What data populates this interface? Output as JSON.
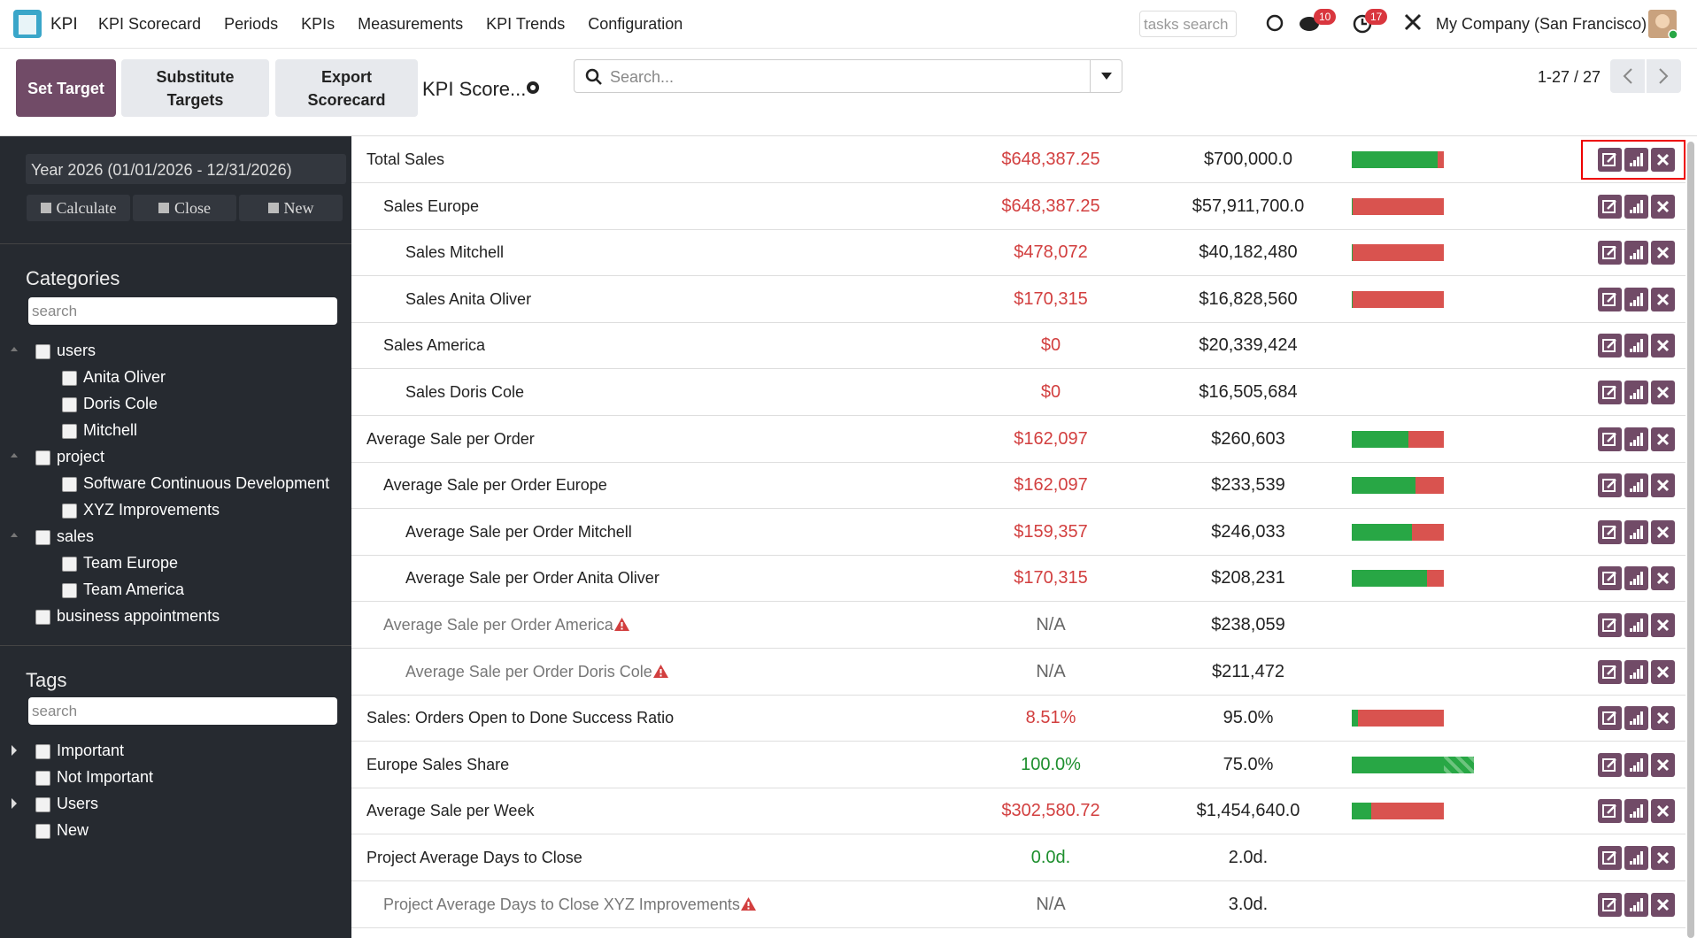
{
  "nav": {
    "app": "KPI",
    "menu": [
      "KPI Scorecard",
      "Periods",
      "KPIs",
      "Measurements",
      "KPI Trends",
      "Configuration"
    ],
    "tasks_search": "tasks search",
    "chat_badge": 10,
    "activity_badge": 17,
    "company": "My Company (San Francisco)"
  },
  "toolbar": {
    "buttons": [
      "Set Target",
      "Substitute Targets",
      "Export Scorecard"
    ],
    "title": "KPI Score...",
    "search": "Search...",
    "pager": "1-27 / 27"
  },
  "sidebar": {
    "period": "Year 2026 (01/01/2026 - 12/31/2026)",
    "actions": [
      "Calculate",
      "Close",
      "New"
    ],
    "categories": {
      "title": "Categories",
      "search": "search",
      "items": [
        {
          "label": "users",
          "level": 0
        },
        {
          "label": "Anita Oliver",
          "level": 1
        },
        {
          "label": "Doris Cole",
          "level": 1
        },
        {
          "label": "Mitchell",
          "level": 1
        },
        {
          "label": "project",
          "level": 0
        },
        {
          "label": "Software Continuous Development",
          "level": 1
        },
        {
          "label": "XYZ Improvements",
          "level": 1
        },
        {
          "label": "sales",
          "level": 0
        },
        {
          "label": "Team Europe",
          "level": 1
        },
        {
          "label": "Team America",
          "level": 1
        },
        {
          "label": "business appointments",
          "level": 0
        }
      ]
    },
    "tags": {
      "title": "Tags",
      "search": "search",
      "items": [
        {
          "label": "Important",
          "has_children": true
        },
        {
          "label": "Not Important",
          "has_children": false
        },
        {
          "label": "Users",
          "has_children": true
        },
        {
          "label": "New",
          "has_children": false
        }
      ]
    }
  },
  "rows": [
    {
      "name": "Total Sales",
      "level": 0,
      "actual": "$648,387.25",
      "target": "$700,000.0",
      "status": "red",
      "warning": false,
      "progress": 0.93
    },
    {
      "name": "Sales Europe",
      "level": 1,
      "actual": "$648,387.25",
      "target": "$57,911,700.0",
      "status": "red",
      "warning": false,
      "progress": 0.01
    },
    {
      "name": "Sales Mitchell",
      "level": 2,
      "actual": "$478,072",
      "target": "$40,182,480",
      "status": "red",
      "warning": false,
      "progress": 0.01
    },
    {
      "name": "Sales Anita Oliver",
      "level": 2,
      "actual": "$170,315",
      "target": "$16,828,560",
      "status": "red",
      "warning": false,
      "progress": 0.01
    },
    {
      "name": "Sales America",
      "level": 1,
      "actual": "$0",
      "target": "$20,339,424",
      "status": "red",
      "warning": false,
      "progress": null
    },
    {
      "name": "Sales Doris Cole",
      "level": 2,
      "actual": "$0",
      "target": "$16,505,684",
      "status": "red",
      "warning": false,
      "progress": null
    },
    {
      "name": "Average Sale per Order",
      "level": 0,
      "actual": "$162,097",
      "target": "$260,603",
      "status": "red",
      "warning": false,
      "progress": 0.62
    },
    {
      "name": "Average Sale per Order Europe",
      "level": 1,
      "actual": "$162,097",
      "target": "$233,539",
      "status": "red",
      "warning": false,
      "progress": 0.69
    },
    {
      "name": "Average Sale per Order Mitchell",
      "level": 2,
      "actual": "$159,357",
      "target": "$246,033",
      "status": "red",
      "warning": false,
      "progress": 0.65
    },
    {
      "name": "Average Sale per Order Anita Oliver",
      "level": 2,
      "actual": "$170,315",
      "target": "$208,231",
      "status": "red",
      "warning": false,
      "progress": 0.82
    },
    {
      "name": "Average Sale per Order America",
      "level": 1,
      "actual": "N/A",
      "target": "$238,059",
      "status": "grey",
      "warning": true,
      "progress": null
    },
    {
      "name": "Average Sale per Order Doris Cole",
      "level": 2,
      "actual": "N/A",
      "target": "$211,472",
      "status": "grey",
      "warning": true,
      "progress": null
    },
    {
      "name": "Sales: Orders Open to Done Success Ratio",
      "level": 0,
      "actual": "8.51%",
      "target": "95.0%",
      "status": "red",
      "warning": false,
      "progress": 0.07
    },
    {
      "name": "Europe Sales Share",
      "level": 0,
      "actual": "100.0%",
      "target": "75.0%",
      "status": "green",
      "warning": false,
      "progress": 1.33
    },
    {
      "name": "Average Sale per Week",
      "level": 0,
      "actual": "$302,580.72",
      "target": "$1,454,640.0",
      "status": "red",
      "warning": false,
      "progress": 0.21
    },
    {
      "name": "Project Average Days to Close",
      "level": 0,
      "actual": "0.0d.",
      "target": "2.0d.",
      "status": "green",
      "warning": false,
      "progress": null
    },
    {
      "name": "Project Average Days to Close XYZ Improvements",
      "level": 1,
      "actual": "N/A",
      "target": "3.0d.",
      "status": "grey",
      "warning": true,
      "progress": null
    }
  ]
}
